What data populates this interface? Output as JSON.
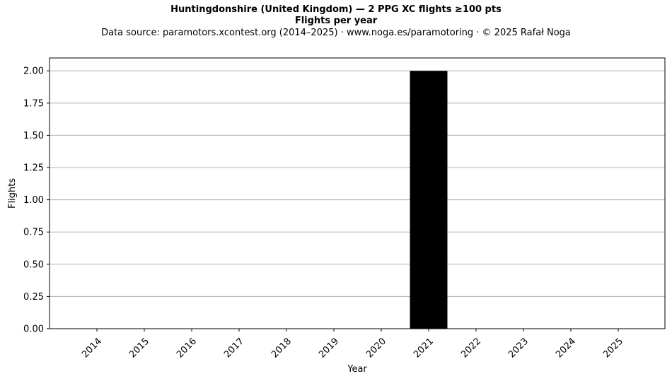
{
  "chart_data": {
    "type": "bar",
    "title": "Huntingdonshire (United Kingdom)  —  2 PPG XC flights ≥100 pts",
    "subtitle": "Flights per year",
    "source_note": "Data source: paramotors.xcontest.org (2014–2025)  ·  www.noga.es/paramotoring  ·  © 2025 Rafał Noga",
    "xlabel": "Year",
    "ylabel": "Flights",
    "categories": [
      "2014",
      "2015",
      "2016",
      "2017",
      "2018",
      "2019",
      "2020",
      "2021",
      "2022",
      "2023",
      "2024",
      "2025"
    ],
    "values": [
      0,
      0,
      0,
      0,
      0,
      0,
      0,
      2,
      0,
      0,
      0,
      0
    ],
    "ylim": [
      0,
      2.1
    ],
    "yticks": [
      "0.00",
      "0.25",
      "0.50",
      "0.75",
      "1.00",
      "1.25",
      "1.50",
      "1.75",
      "2.00"
    ],
    "grid": "horizontal",
    "bar_color": "#000000",
    "grid_color": "#b0b0b0"
  }
}
